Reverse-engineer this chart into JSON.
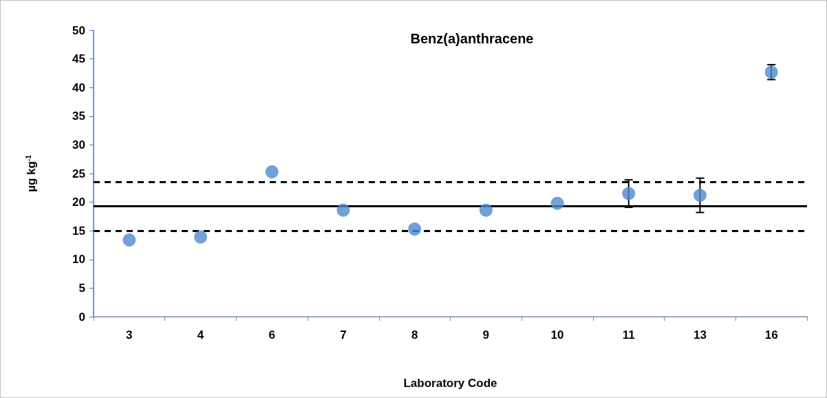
{
  "chart_data": {
    "type": "scatter",
    "title": "Benz(a)anthracene",
    "xlabel": "Laboratory Code",
    "ylabel": "µg kg$^{-1}$",
    "categories": [
      "3",
      "4",
      "6",
      "7",
      "8",
      "9",
      "10",
      "11",
      "13",
      "16"
    ],
    "values": [
      13.4,
      13.9,
      25.3,
      18.6,
      15.3,
      18.6,
      19.8,
      21.5,
      21.2,
      42.7
    ],
    "errors": [
      null,
      null,
      null,
      null,
      null,
      null,
      null,
      2.4,
      3,
      1.3
    ],
    "color": "#4f88d0",
    "marker": "circle",
    "grid": false,
    "ylim": [
      0,
      50
    ],
    "yticks": [
      0,
      5,
      10,
      15,
      20,
      25,
      30,
      35,
      40,
      45,
      50
    ],
    "ref_lines": [
      {
        "axis": "y",
        "value": 19.3,
        "line_style": "solid",
        "color": "#000000"
      },
      {
        "axis": "y",
        "value": 23.5,
        "line_style": "dashed",
        "color": "#000000"
      },
      {
        "axis": "y",
        "value": 15.0,
        "line_style": "dashed",
        "color": "#000000"
      }
    ]
  }
}
